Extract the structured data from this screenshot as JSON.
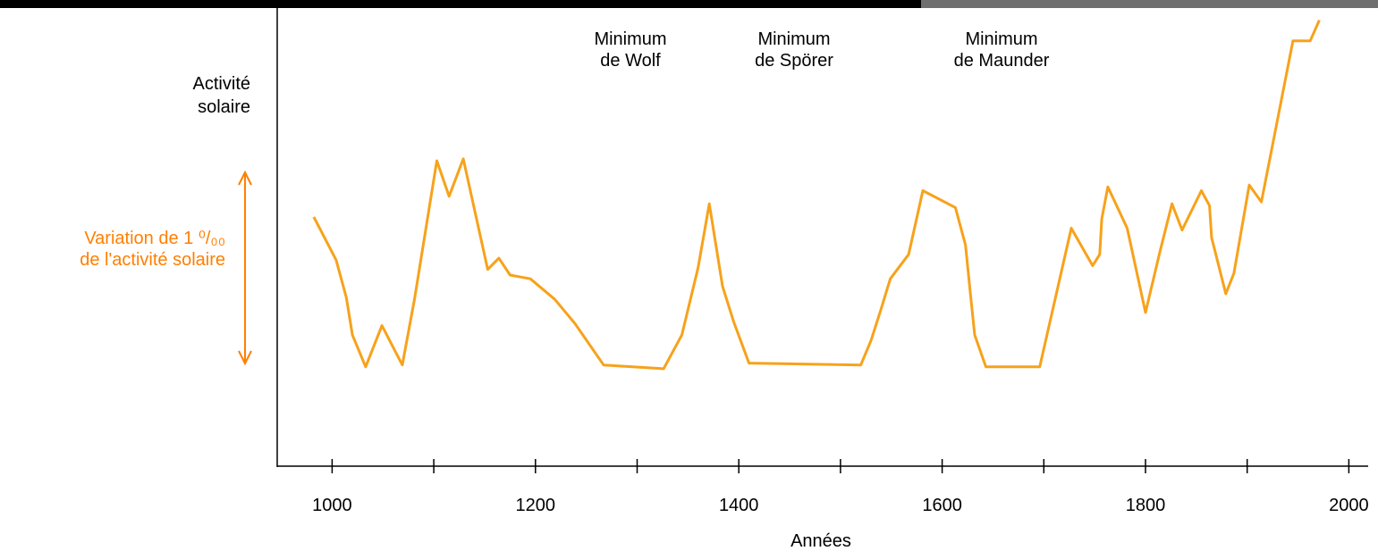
{
  "chart_data": {
    "type": "line",
    "y_label": [
      "Activité",
      "solaire"
    ],
    "x_label": "Années",
    "scale_label": [
      "Variation de 1 ⁰/₀₀",
      "de l'activité solaire"
    ],
    "annotations": [
      [
        "Minimum",
        "de Wolf"
      ],
      [
        "Minimum",
        "de Spörer"
      ],
      [
        "Minimum",
        "de Maunder"
      ]
    ],
    "xlim": [
      946,
      2019
    ],
    "xticks": [
      1000,
      1200,
      1400,
      1600,
      1800,
      2000
    ],
    "xminor_ticks": [
      1100,
      1300,
      1500,
      1700,
      1900
    ],
    "ylim": [
      0,
      2.44
    ],
    "color": "#f7a21b",
    "label_color": "#ff7f00",
    "x": [
      982,
      1004,
      1014,
      1020,
      1033,
      1049,
      1069,
      1081,
      1103,
      1115,
      1129,
      1153,
      1164,
      1175,
      1195,
      1219,
      1239,
      1267,
      1326,
      1344,
      1360,
      1371,
      1384,
      1395,
      1410,
      1520,
      1530,
      1540,
      1549,
      1567,
      1581,
      1613,
      1623,
      1628,
      1632,
      1643,
      1696,
      1727,
      1748,
      1755,
      1757,
      1763,
      1782,
      1800,
      1814,
      1826,
      1836,
      1855,
      1863,
      1865,
      1879,
      1887,
      1902,
      1914,
      1945,
      1962,
      1971
    ],
    "values": [
      1.33,
      1.1,
      0.9,
      0.7,
      0.53,
      0.75,
      0.54,
      0.89,
      1.63,
      1.44,
      1.64,
      1.05,
      1.11,
      1.02,
      1.0,
      0.89,
      0.76,
      0.54,
      0.52,
      0.7,
      1.06,
      1.4,
      0.96,
      0.77,
      0.55,
      0.54,
      0.67,
      0.84,
      1.0,
      1.13,
      1.47,
      1.38,
      1.18,
      0.91,
      0.7,
      0.53,
      0.53,
      1.27,
      1.07,
      1.13,
      1.32,
      1.49,
      1.27,
      0.82,
      1.14,
      1.4,
      1.26,
      1.47,
      1.39,
      1.22,
      0.92,
      1.03,
      1.5,
      1.41,
      2.27,
      2.27,
      2.38
    ]
  }
}
